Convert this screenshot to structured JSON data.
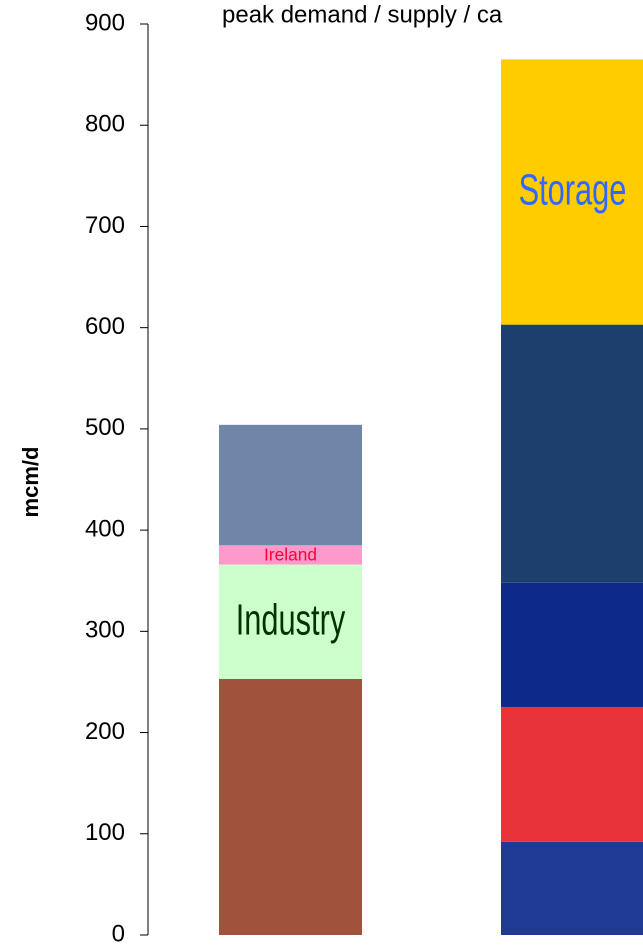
{
  "chart_data": {
    "type": "stacked-bar",
    "title": "peak demand / supply / ca",
    "y_label": "mcm/d",
    "ylim": [
      0,
      900
    ],
    "yticks": [
      0,
      100,
      200,
      300,
      400,
      500,
      600,
      700,
      800,
      900
    ],
    "bars": [
      {
        "segments": [
          {
            "value": 253,
            "color": "#a0523c"
          },
          {
            "value": 113,
            "color": "#ccffcc",
            "label": "Industry",
            "label_color": "#003300"
          },
          {
            "value": 19,
            "color": "#ff99cc",
            "label": "Ireland",
            "label_color": "#ff0033"
          },
          {
            "value": 119,
            "color": "#6f86a8"
          }
        ]
      },
      {
        "segments": [
          {
            "value": 92,
            "color": "#1f3a93"
          },
          {
            "value": 133,
            "color": "#e8333b"
          },
          {
            "value": 123,
            "color": "#0b2a8a"
          },
          {
            "value": 255,
            "color": "#1d3f6e"
          },
          {
            "value": 262,
            "color": "#ffcc00",
            "label": "Storage",
            "label_color": "#3366ff"
          }
        ]
      }
    ]
  }
}
